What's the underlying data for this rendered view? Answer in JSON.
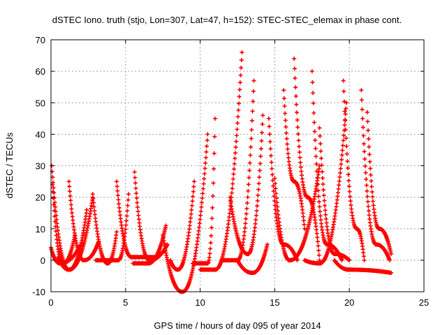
{
  "chart_data": {
    "type": "scatter",
    "title": "dSTEC Iono. truth (stjo, Lon=307, Lat=47, h=152): STEC-STEC_elemax in phase cont.",
    "xlabel": "GPS time / hours of day 095 of year 2014",
    "ylabel": "dSTEC  / TECUs",
    "xlim": [
      0,
      25
    ],
    "ylim": [
      -10,
      70
    ],
    "xticks": [
      0,
      5,
      10,
      15,
      20,
      25
    ],
    "yticks": [
      -10,
      0,
      10,
      20,
      30,
      40,
      50,
      60,
      70
    ],
    "xtick_labels": [
      "0",
      "5",
      "10",
      "15",
      "20",
      "25"
    ],
    "ytick_labels": [
      "-10",
      "0",
      "10",
      "20",
      "30",
      "40",
      "50",
      "60",
      "70"
    ],
    "grid": true,
    "marker": "+",
    "color": "#ff0000",
    "arcs": [
      {
        "peak_x": 0.05,
        "peak_y": 30,
        "min_x": 1.2,
        "min_y": -3,
        "end_x": 2.4,
        "end_y": 16
      },
      {
        "peak_x": 0.1,
        "peak_y": 24,
        "min_x": 0.8,
        "min_y": -1,
        "end_x": 1.6,
        "end_y": 8
      },
      {
        "peak_x": 0.0,
        "peak_y": 4,
        "min_x": 0.6,
        "min_y": -1,
        "end_x": 2.0,
        "end_y": 5
      },
      {
        "peak_x": 1.2,
        "peak_y": 25,
        "min_x": 2.2,
        "min_y": 0,
        "end_x": 3.2,
        "end_y": 6
      },
      {
        "peak_x": 2.8,
        "peak_y": 21,
        "min_x": 3.8,
        "min_y": -1,
        "end_x": 4.4,
        "end_y": 9
      },
      {
        "peak_x": 0.5,
        "peak_y": 1,
        "min_x": 1.2,
        "min_y": -3,
        "end_x": 2.8,
        "end_y": 20
      },
      {
        "peak_x": 4.4,
        "peak_y": 25,
        "min_x": 5.4,
        "min_y": 1,
        "end_x": 7.0,
        "end_y": 1
      },
      {
        "peak_x": 5.6,
        "peak_y": 28,
        "min_x": 6.6,
        "min_y": 0,
        "end_x": 7.8,
        "end_y": 5
      },
      {
        "peak_x": 3.0,
        "peak_y": 0,
        "min_x": 4.5,
        "min_y": 0,
        "end_x": 5.2,
        "end_y": 21
      },
      {
        "peak_x": 5.5,
        "peak_y": -1,
        "min_x": 6.5,
        "min_y": -1,
        "end_x": 7.7,
        "end_y": 11
      },
      {
        "peak_x": 7.5,
        "peak_y": 8,
        "min_x": 8.8,
        "min_y": -10,
        "end_x": 10.5,
        "end_y": 40
      },
      {
        "peak_x": 8.0,
        "peak_y": 0,
        "min_x": 8.5,
        "min_y": -3,
        "end_x": 9.6,
        "end_y": 25
      },
      {
        "peak_x": 9.5,
        "peak_y": -1,
        "min_x": 10.5,
        "min_y": -1,
        "end_x": 11.0,
        "end_y": 45
      },
      {
        "peak_x": 10.0,
        "peak_y": -3,
        "min_x": 11.0,
        "min_y": -3,
        "end_x": 12.8,
        "end_y": 66
      },
      {
        "peak_x": 11.5,
        "peak_y": 0,
        "min_x": 12.5,
        "min_y": 0,
        "end_x": 13.6,
        "end_y": 57
      },
      {
        "peak_x": 12.0,
        "peak_y": 20,
        "min_x": 13.2,
        "min_y": 2,
        "end_x": 14.2,
        "end_y": 46
      },
      {
        "peak_x": 12.5,
        "peak_y": 0,
        "min_x": 13.5,
        "min_y": -4,
        "end_x": 14.5,
        "end_y": 5
      },
      {
        "peak_x": 14.6,
        "peak_y": 45,
        "min_x": 15.6,
        "min_y": 5,
        "end_x": 16.5,
        "end_y": 0
      },
      {
        "peak_x": 15.6,
        "peak_y": 54,
        "min_x": 16.3,
        "min_y": 25,
        "end_x": 17.0,
        "end_y": 10
      },
      {
        "peak_x": 16.3,
        "peak_y": 64,
        "min_x": 17.2,
        "min_y": 20,
        "end_x": 18.0,
        "end_y": 0
      },
      {
        "peak_x": 17.5,
        "peak_y": 60,
        "min_x": 18.5,
        "min_y": 5,
        "end_x": 19.5,
        "end_y": 0
      },
      {
        "peak_x": 18.0,
        "peak_y": 42,
        "min_x": 19.0,
        "min_y": 2,
        "end_x": 20.0,
        "end_y": 0
      },
      {
        "peak_x": 19.6,
        "peak_y": 57,
        "min_x": 20.5,
        "min_y": 10,
        "end_x": 21.0,
        "end_y": 0
      },
      {
        "peak_x": 20.8,
        "peak_y": 54,
        "min_x": 21.8,
        "min_y": 5,
        "end_x": 22.7,
        "end_y": 0
      },
      {
        "peak_x": 21.2,
        "peak_y": 47,
        "min_x": 22.0,
        "min_y": 10,
        "end_x": 22.8,
        "end_y": 2
      },
      {
        "peak_x": 19.0,
        "peak_y": 0,
        "min_x": 20.0,
        "min_y": -3,
        "end_x": 22.8,
        "end_y": -4
      },
      {
        "peak_x": 15.0,
        "peak_y": 26,
        "min_x": 16.0,
        "min_y": 0,
        "end_x": 18.0,
        "end_y": 30
      },
      {
        "peak_x": 17.0,
        "peak_y": 0,
        "min_x": 18.0,
        "min_y": -1,
        "end_x": 19.8,
        "end_y": 50
      }
    ]
  }
}
